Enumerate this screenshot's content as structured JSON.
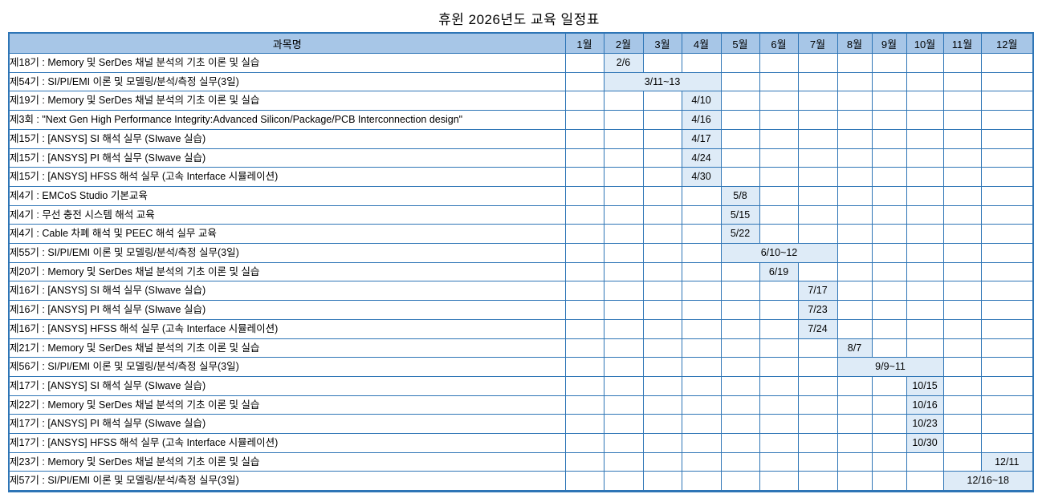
{
  "title": "휴윈 2026년도 교육 일정표",
  "colors": {
    "header_fill": "#A7C6E7",
    "date_cell_fill": "#DEEBF7",
    "grid_border": "#2E75B6",
    "text": "#000000",
    "background": "#FFFFFF"
  },
  "table": {
    "subject_header": "과목명",
    "months": [
      "1월",
      "2월",
      "3월",
      "4월",
      "5월",
      "6월",
      "7월",
      "8월",
      "9월",
      "10월",
      "11월",
      "12월"
    ],
    "rows": [
      {
        "subject": "제18기 : Memory 및 SerDes 채널 분석의 기초 이론 및 실습",
        "date": "2/6",
        "month": 2,
        "span": 1
      },
      {
        "subject": "제54기 : SI/PI/EMI 이론 및 모델링/분석/측정 실무(3일)",
        "date": "3/11~13",
        "month": 2,
        "span": 3
      },
      {
        "subject": "제19기 : Memory 및 SerDes 채널 분석의 기초 이론 및 실습",
        "date": "4/10",
        "month": 4,
        "span": 1
      },
      {
        "subject": "제3회 : \"Next Gen High Performance Integrity:Advanced Silicon/Package/PCB Interconnection design\"",
        "date": "4/16",
        "month": 4,
        "span": 1
      },
      {
        "subject": "제15기 : [ANSYS] SI 해석 실무 (SIwave 실습)",
        "date": "4/17",
        "month": 4,
        "span": 1
      },
      {
        "subject": "제15기 : [ANSYS] PI 해석 실무 (SIwave 실습)",
        "date": "4/24",
        "month": 4,
        "span": 1
      },
      {
        "subject": "제15기 : [ANSYS] HFSS 해석 실무 (고속 Interface 시뮬레이션)",
        "date": "4/30",
        "month": 4,
        "span": 1
      },
      {
        "subject": "제4기 : EMCoS Studio 기본교육",
        "date": "5/8",
        "month": 5,
        "span": 1
      },
      {
        "subject": "제4기 : 무선 충전 시스템 해석 교육",
        "date": "5/15",
        "month": 5,
        "span": 1
      },
      {
        "subject": "제4기 : Cable 차폐 해석 및 PEEC 해석 실무 교육",
        "date": "5/22",
        "month": 5,
        "span": 1
      },
      {
        "subject": "제55기 : SI/PI/EMI 이론 및 모델링/분석/측정 실무(3일)",
        "date": "6/10~12",
        "month": 5,
        "span": 3
      },
      {
        "subject": "제20기 : Memory 및 SerDes 채널 분석의 기초 이론 및 실습",
        "date": "6/19",
        "month": 6,
        "span": 1
      },
      {
        "subject": "제16기 : [ANSYS] SI 해석 실무 (SIwave 실습)",
        "date": "7/17",
        "month": 7,
        "span": 1
      },
      {
        "subject": "제16기 : [ANSYS] PI 해석 실무 (SIwave 실습)",
        "date": "7/23",
        "month": 7,
        "span": 1
      },
      {
        "subject": "제16기 : [ANSYS] HFSS 해석 실무 (고속 Interface 시뮬레이션)",
        "date": "7/24",
        "month": 7,
        "span": 1
      },
      {
        "subject": "제21기 : Memory 및 SerDes 채널 분석의 기초 이론 및 실습",
        "date": "8/7",
        "month": 8,
        "span": 1
      },
      {
        "subject": "제56기 : SI/PI/EMI 이론 및 모델링/분석/측정 실무(3일)",
        "date": "9/9~11",
        "month": 8,
        "span": 3
      },
      {
        "subject": "제17기 : [ANSYS] SI 해석 실무 (SIwave 실습)",
        "date": "10/15",
        "month": 10,
        "span": 1
      },
      {
        "subject": "제22기 : Memory 및 SerDes 채널 분석의 기초 이론 및 실습",
        "date": "10/16",
        "month": 10,
        "span": 1
      },
      {
        "subject": "제17기 : [ANSYS] PI 해석 실무 (SIwave 실습)",
        "date": "10/23",
        "month": 10,
        "span": 1
      },
      {
        "subject": "제17기 : [ANSYS] HFSS 해석 실무 (고속 Interface 시뮬레이션)",
        "date": "10/30",
        "month": 10,
        "span": 1
      },
      {
        "subject": "제23기 : Memory 및 SerDes 채널 분석의 기초 이론 및 실습",
        "date": "12/11",
        "month": 12,
        "span": 1
      },
      {
        "subject": "제57기 : SI/PI/EMI 이론 및 모델링/분석/측정 실무(3일)",
        "date": "12/16~18",
        "month": 11,
        "span": 2
      }
    ]
  }
}
